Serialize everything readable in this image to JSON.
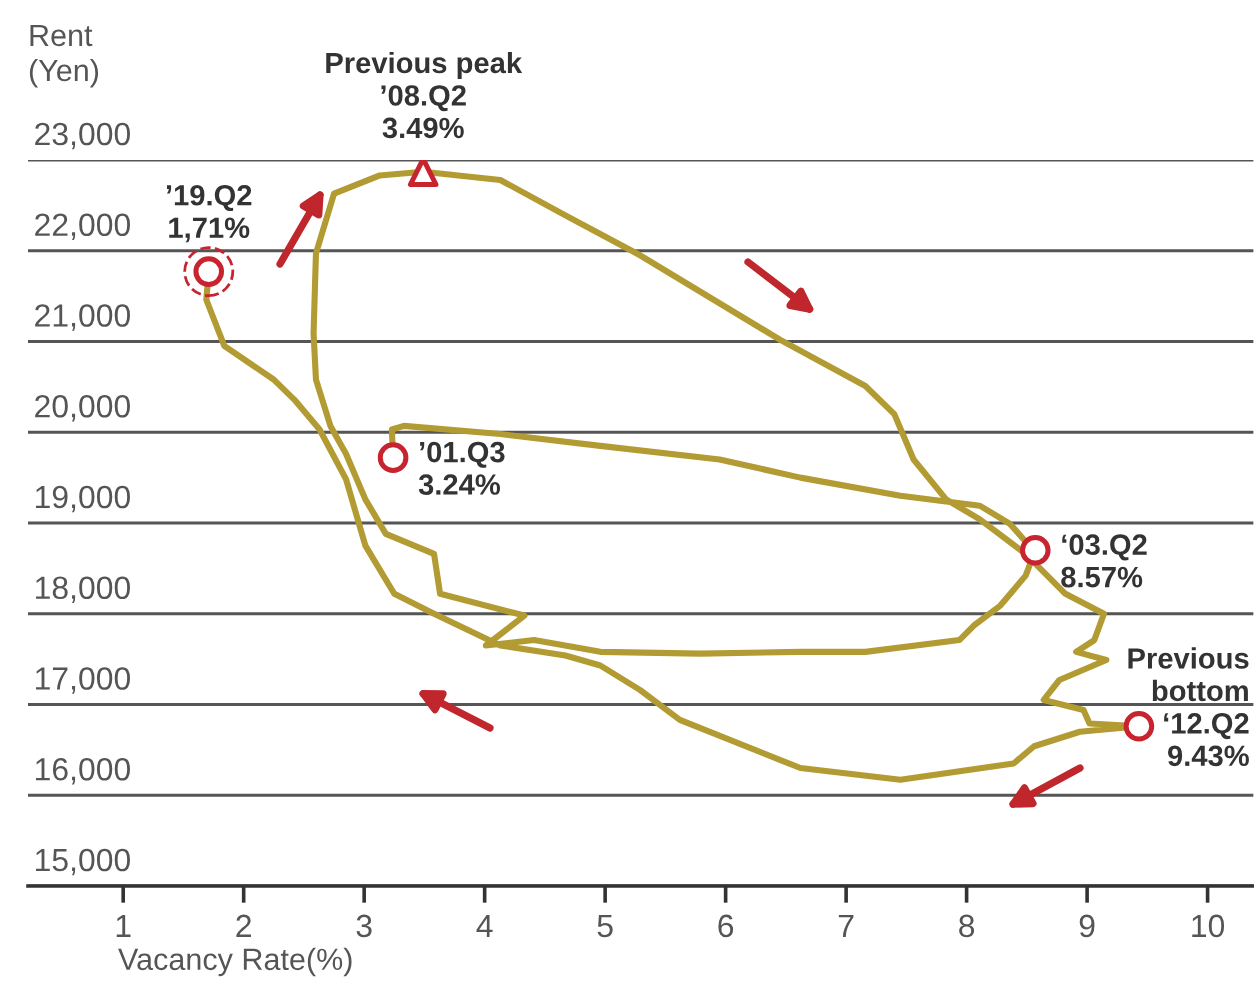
{
  "chart_data": {
    "type": "line",
    "xlabel": "Vacancy Rate(%)",
    "ylabel": "Rent\n(Yen)",
    "xlim": [
      0.21,
      10.38
    ],
    "xticks": [
      1,
      2,
      3,
      4,
      5,
      6,
      7,
      8,
      9,
      10
    ],
    "ylim": [
      15000,
      23000
    ],
    "yticks": [
      {
        "value": 15000,
        "label": "15,000"
      },
      {
        "value": 16000,
        "label": "16,000"
      },
      {
        "value": 17000,
        "label": "17,000"
      },
      {
        "value": 18000,
        "label": "18,000"
      },
      {
        "value": 19000,
        "label": "19,000"
      },
      {
        "value": 20000,
        "label": "20,000"
      },
      {
        "value": 21000,
        "label": "21,000"
      },
      {
        "value": 22000,
        "label": "22,000"
      },
      {
        "value": 23000,
        "label": "23,000"
      }
    ],
    "grid": "y",
    "series": [
      {
        "color": "#b39b33",
        "marker": "none",
        "line_style": "solid",
        "x": [
          3.24,
          3.23,
          3.33,
          4.13,
          4.96,
          5.95,
          6.62,
          7.45,
          8.11,
          8.36,
          8.48,
          8.57,
          8.49,
          8.28,
          8.06,
          7.94,
          7.16,
          6.62,
          5.79,
          4.96,
          4.41,
          4.01,
          4.33,
          3.63,
          3.58,
          3.18,
          3.01,
          2.85,
          2.72,
          2.6,
          2.58,
          2.6,
          2.75,
          3.13,
          3.49,
          4.13,
          4.67,
          5.29,
          6.45,
          7.16,
          7.4,
          7.56,
          7.83,
          8.11,
          8.49,
          8.82,
          9.14,
          9.06,
          8.91,
          9.16,
          8.77,
          8.64,
          8.97,
          9.02,
          9.43,
          8.94,
          8.56,
          8.39,
          7.45,
          6.62,
          5.62,
          5.29,
          4.96,
          4.67,
          4.13,
          3.58,
          3.25,
          3.01,
          2.85,
          2.63,
          2.42,
          2.25,
          1.84,
          1.69,
          1.71
        ],
        "values": [
          19720,
          20030,
          20070,
          19980,
          19850,
          19700,
          19500,
          19300,
          19190,
          18990,
          18810,
          18700,
          18420,
          18090,
          17870,
          17710,
          17580,
          17580,
          17560,
          17580,
          17710,
          17650,
          17980,
          18220,
          18660,
          18880,
          19260,
          19760,
          20070,
          20580,
          21090,
          21970,
          22630,
          22830,
          22870,
          22780,
          22390,
          21950,
          21020,
          20510,
          20200,
          19700,
          19260,
          19040,
          18660,
          18220,
          18000,
          17710,
          17580,
          17490,
          17270,
          17050,
          16940,
          16790,
          16760,
          16700,
          16540,
          16350,
          16170,
          16300,
          16830,
          17160,
          17430,
          17540,
          17650,
          18000,
          18220,
          18750,
          19480,
          20030,
          20360,
          20580,
          20950,
          21460,
          21770
        ]
      },
      {
        "type": "scatter",
        "color": "#c8242f",
        "marker": "circle",
        "x": [
          3.24,
          8.57,
          9.43
        ],
        "values": [
          19720,
          18700,
          16760
        ]
      },
      {
        "type": "scatter",
        "color": "#c8242f",
        "marker": "triangle",
        "x": [
          3.49
        ],
        "values": [
          22870
        ]
      },
      {
        "type": "scatter",
        "color": "#c8242f",
        "marker": "circle",
        "line_style": "dashed",
        "x": [
          1.71
        ],
        "values": [
          21770
        ]
      }
    ],
    "annotations": [
      {
        "text": "Previous peak\n’08.Q2\n3.49%",
        "x": 3.49,
        "y": 22870
      },
      {
        "text": "’19.Q2\n1,71%",
        "x": 1.71,
        "y": 21770
      },
      {
        "text": "’01.Q3\n3.24%",
        "x": 3.24,
        "y": 19720
      },
      {
        "text": "‘03.Q2\n8.57%",
        "x": 8.57,
        "y": 18700
      },
      {
        "text": "Previous\nbottom\n‘12.Q2\n9.43%",
        "x": 9.43,
        "y": 16760
      }
    ]
  }
}
